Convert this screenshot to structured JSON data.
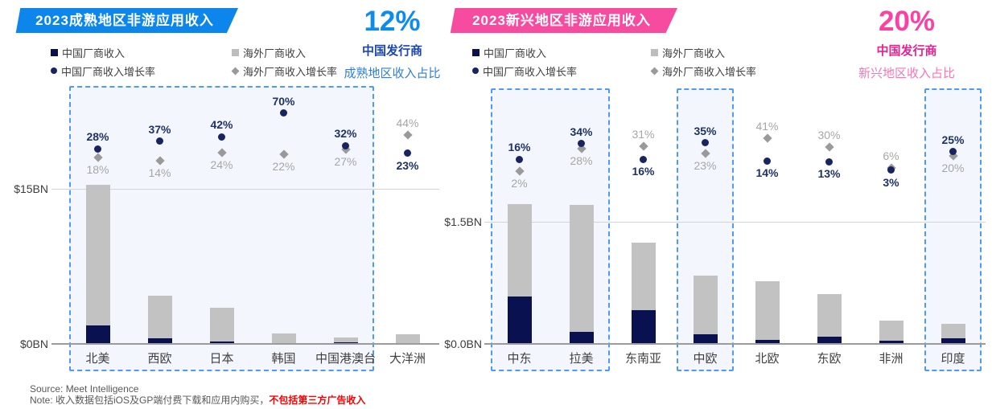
{
  "page_title": "2023 非游应用收入对比（成熟地区 vs 新兴地区）",
  "colors": {
    "china_bar": "#0a1150",
    "overseas_bar": "#c2c2c2",
    "china_marker": "#18245f",
    "overseas_marker": "#9a9a9a",
    "china_label": "#1e3264",
    "overseas_label": "#a6a6a6",
    "box_border": "#4d9bf5",
    "box_bg": "#f3f7fd"
  },
  "chart_data": [
    {
      "type": "bar",
      "subtype": "stacked-bars-with-growth-markers",
      "title": "2023成熟地区非游应用收入",
      "badge_color": "#0c86ea",
      "highlight": {
        "pct": "12%",
        "pct_color": "#0d8cf0",
        "line1": "中国发行商",
        "line1_color": "#1a46b4",
        "line2": "成熟地区收入占比",
        "line2_color": "#2e80d8"
      },
      "legend": [
        {
          "marker": "square-navy",
          "label": "中国厂商收入"
        },
        {
          "marker": "square-gray",
          "label": "海外厂商收入"
        },
        {
          "marker": "dot-navy",
          "label": "中国厂商收入增长率"
        },
        {
          "marker": "diamond-gray",
          "label": "海外厂商收入增长率"
        }
      ],
      "axis": {
        "grid_label": "$15BN",
        "base_label": "$0BN",
        "grid_value": 15,
        "unit": "BN USD"
      },
      "categories": [
        "北美",
        "西欧",
        "日本",
        "韩国",
        "中国港澳台",
        "大洋洲"
      ],
      "series": [
        {
          "name": "中国厂商收入",
          "values": [
            1.8,
            0.55,
            0.27,
            0.05,
            0.15,
            0.1
          ]
        },
        {
          "name": "海外厂商收入",
          "values": [
            13.6,
            4.15,
            3.2,
            0.95,
            0.45,
            0.8
          ]
        }
      ],
      "growth_series": [
        {
          "name": "中国厂商收入增长率",
          "values": [
            28,
            37,
            42,
            70,
            32,
            23
          ]
        },
        {
          "name": "海外厂商收入增长率",
          "values": [
            18,
            14,
            24,
            22,
            27,
            44
          ]
        }
      ],
      "highlight_boxes": [
        [
          0,
          4
        ]
      ]
    },
    {
      "type": "bar",
      "subtype": "stacked-bars-with-growth-markers",
      "title": "2023新兴地区非游应用收入",
      "badge_color": "#f74ba0",
      "highlight": {
        "pct": "20%",
        "pct_color": "#fb42a4",
        "line1": "中国发行商",
        "line1_color": "#e82190",
        "line2": "新兴地区收入占比",
        "line2_color": "#fa74b5"
      },
      "legend": [
        {
          "marker": "square-navy",
          "label": "中国厂商收入"
        },
        {
          "marker": "square-gray",
          "label": "海外厂商收入"
        },
        {
          "marker": "dot-navy",
          "label": "中国厂商收入增长率"
        },
        {
          "marker": "diamond-gray",
          "label": "海外厂商收入增长率"
        }
      ],
      "axis": {
        "grid_label": "$1.5BN",
        "base_label": "$0.0BN",
        "grid_value": 1.5,
        "unit": "BN USD"
      },
      "categories": [
        "中东",
        "拉美",
        "东南亚",
        "中欧",
        "北欧",
        "东欧",
        "非洲",
        "印度"
      ],
      "series": [
        {
          "name": "中国厂商收入",
          "values": [
            0.58,
            0.15,
            0.41,
            0.12,
            0.05,
            0.09,
            0.035,
            0.07
          ]
        },
        {
          "name": "海外厂商收入",
          "values": [
            1.14,
            1.56,
            0.83,
            0.72,
            0.72,
            0.52,
            0.255,
            0.18
          ]
        }
      ],
      "growth_series": [
        {
          "name": "中国厂商收入增长率",
          "values": [
            16,
            34,
            16,
            35,
            14,
            13,
            3,
            25
          ]
        },
        {
          "name": "海外厂商收入增长率",
          "values": [
            2,
            28,
            31,
            23,
            41,
            30,
            6,
            20
          ]
        }
      ],
      "highlight_boxes": [
        [
          0,
          1
        ],
        [
          3,
          3
        ],
        [
          7,
          7
        ]
      ]
    }
  ],
  "footer": {
    "source": "Source: Meet Intelligence",
    "note_prefix": "Note: 收入数据包括iOS及GP端付费下载和应用内购买，",
    "note_red": "不包括第三方广告收入",
    "note_red_color": "#fe0000"
  }
}
